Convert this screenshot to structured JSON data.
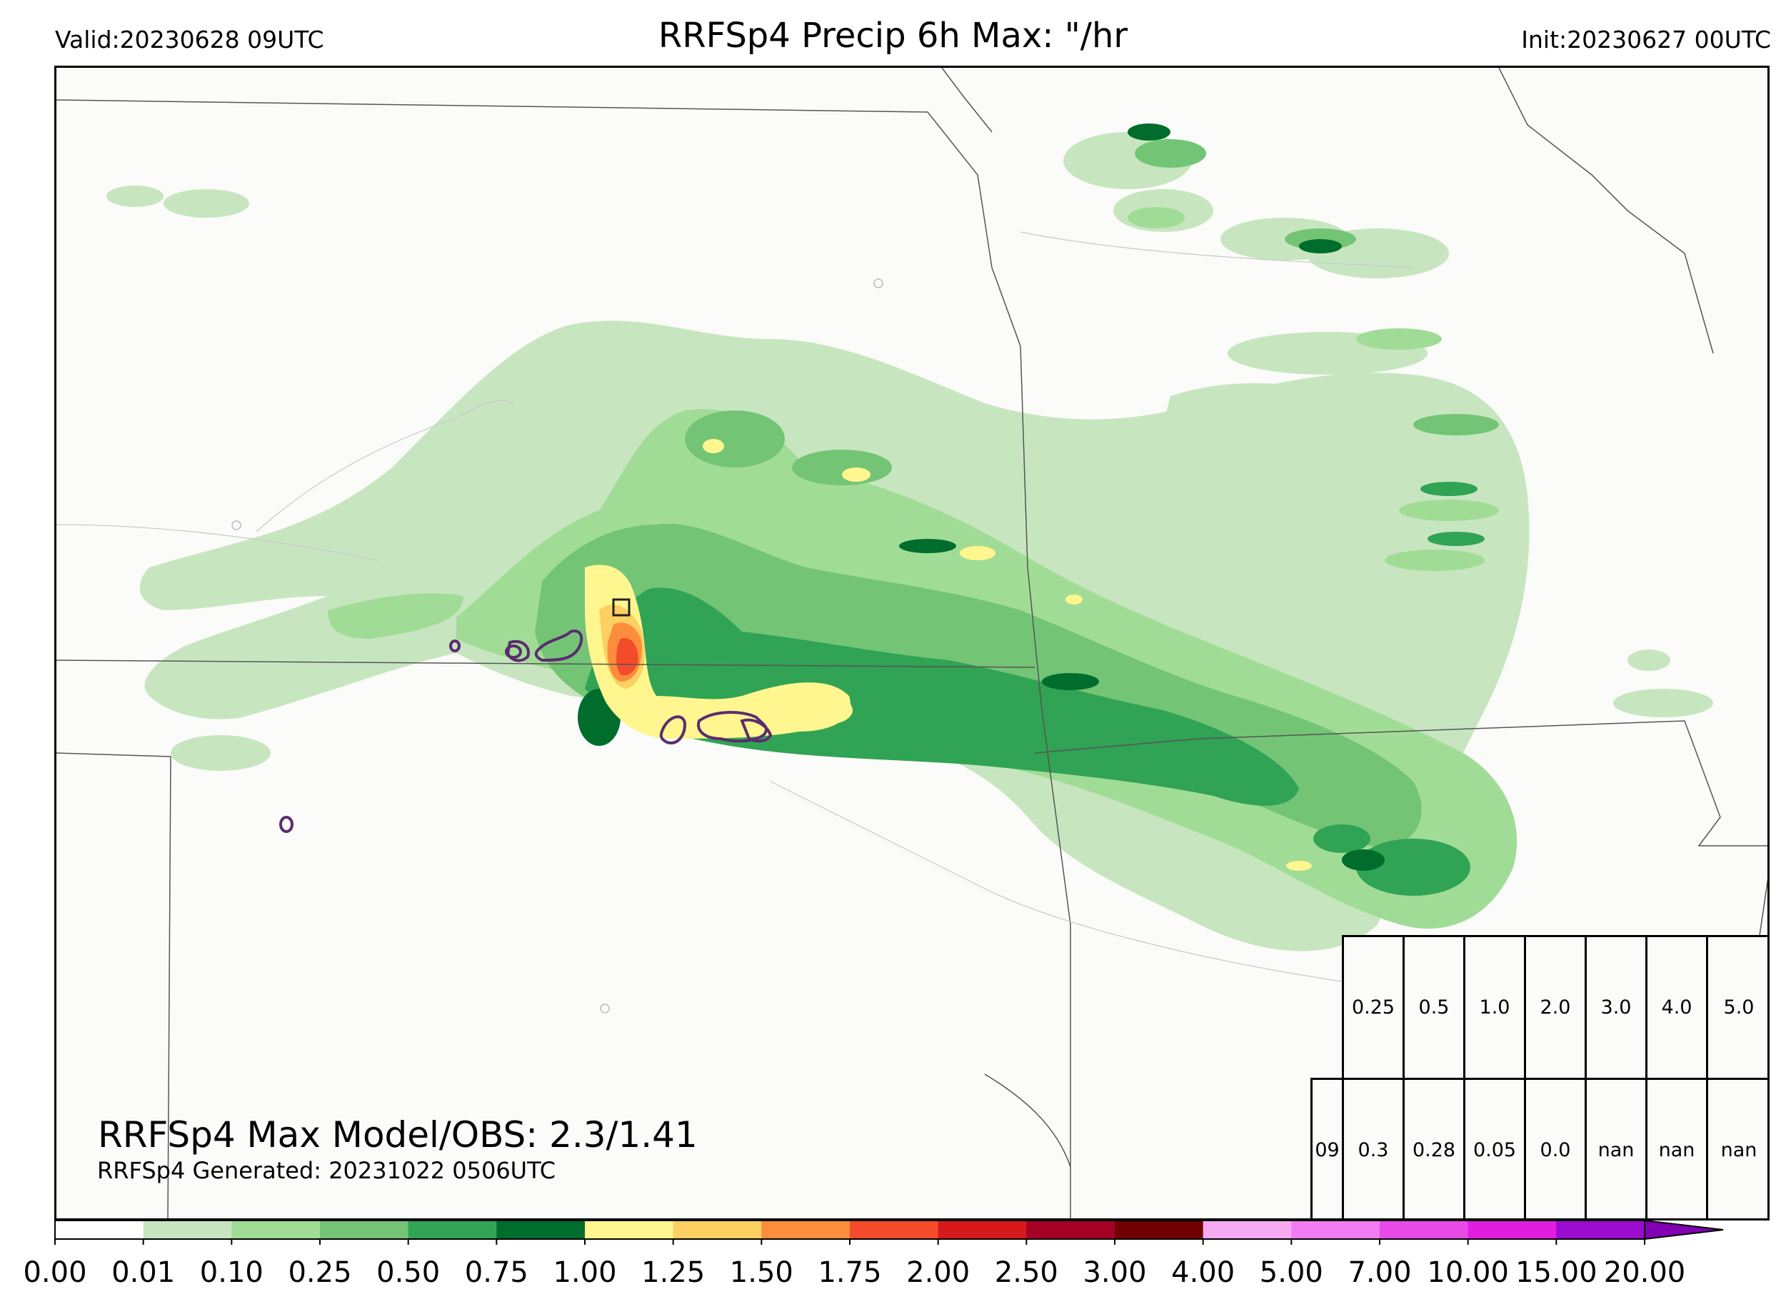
{
  "header": {
    "valid": "Valid:20230628 09UTC",
    "title": "RRFSp4 Precip 6h Max: \"/hr",
    "init": "Init:20230627 00UTC"
  },
  "annotations": {
    "max_model_obs": "RRFSp4 Max Model/OBS: 2.3/1.41",
    "generated": "RRFSp4 Generated: 20231022 0506UTC"
  },
  "colorbar": {
    "ticks": [
      "0.00",
      "0.01",
      "0.10",
      "0.25",
      "0.50",
      "0.75",
      "1.00",
      "1.25",
      "1.50",
      "1.75",
      "2.00",
      "2.50",
      "3.00",
      "4.00",
      "5.00",
      "7.00",
      "10.00",
      "15.00",
      "20.00"
    ],
    "colors": [
      "#ffffff",
      "#c7e6c0",
      "#a1dc96",
      "#74c476",
      "#31a354",
      "#006d2c",
      "#fff68f",
      "#fdd061",
      "#fc8d3c",
      "#f44c2a",
      "#d7191c",
      "#a50026",
      "#6e0000",
      "#f6aaf4",
      "#f27cf2",
      "#e84be8",
      "#e01ee0",
      "#9a0ccf"
    ],
    "extend_color": "#8200b4"
  },
  "stats_table": {
    "threshold_row": [
      "0.25",
      "0.5",
      "1.0",
      "2.0",
      "3.0",
      "4.0",
      "5.0"
    ],
    "value_row": [
      "09",
      "0.3",
      "0.28",
      "0.05",
      "0.0",
      "nan",
      "nan",
      "nan"
    ]
  },
  "map": {
    "background": "#fbfbf9",
    "obs_contour_color": "#5b2c6f",
    "max_box_color": "#222222"
  }
}
